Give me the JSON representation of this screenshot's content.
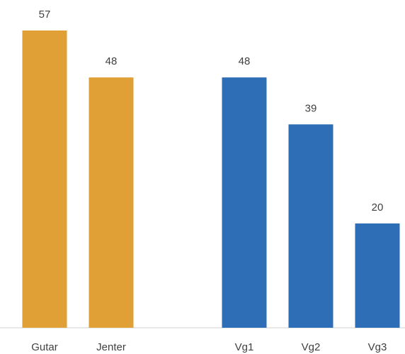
{
  "chart_data": {
    "type": "bar",
    "categories": [
      "Gutar",
      "Jenter",
      null,
      "Vg1",
      "Vg2",
      "Vg3"
    ],
    "values": [
      57,
      48,
      null,
      48,
      39,
      20
    ],
    "colors": [
      "#e0a035",
      "#e0a035",
      null,
      "#2e6eb6",
      "#2e6eb6",
      "#2e6eb6"
    ]
  }
}
